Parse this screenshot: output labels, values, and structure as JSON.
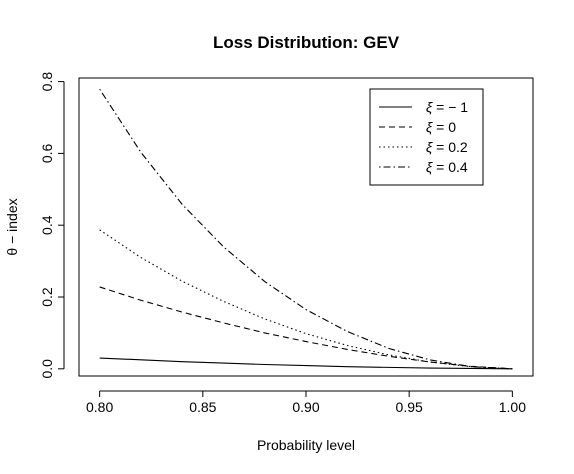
{
  "chart_data": {
    "type": "line",
    "title": "Loss Distribution: GEV",
    "xlabel": "Probability level",
    "ylabel": "θ − index",
    "xlim": [
      0.79,
      1.01
    ],
    "ylim": [
      -0.02,
      0.81
    ],
    "x_ticks": [
      0.8,
      0.85,
      0.9,
      0.95,
      1.0
    ],
    "x_tick_labels": [
      "0.80",
      "0.85",
      "0.90",
      "0.95",
      "1.00"
    ],
    "y_ticks": [
      0.0,
      0.2,
      0.4,
      0.6,
      0.8
    ],
    "y_tick_labels": [
      "0.0",
      "0.2",
      "0.4",
      "0.6",
      "0.8"
    ],
    "grid": false,
    "legend": {
      "placement": "top-right"
    },
    "x": [
      0.8,
      0.82,
      0.84,
      0.86,
      0.88,
      0.9,
      0.92,
      0.94,
      0.96,
      0.98,
      1.0
    ],
    "series": [
      {
        "name": "ξ = −1",
        "legend_symbol": "ξ",
        "legend_value": "= − 1",
        "linestyle": "solid",
        "values": [
          0.03,
          0.025,
          0.02,
          0.016,
          0.012,
          0.009,
          0.006,
          0.004,
          0.002,
          0.001,
          0.0
        ]
      },
      {
        "name": "ξ = 0",
        "legend_symbol": "ξ",
        "legend_value": "= 0",
        "linestyle": "dashed",
        "values": [
          0.228,
          0.191,
          0.158,
          0.128,
          0.1,
          0.076,
          0.054,
          0.035,
          0.019,
          0.007,
          0.0
        ]
      },
      {
        "name": "ξ = 0.2",
        "legend_symbol": "ξ",
        "legend_value": "= 0.2",
        "linestyle": "dotted",
        "values": [
          0.387,
          0.31,
          0.244,
          0.188,
          0.139,
          0.098,
          0.065,
          0.039,
          0.019,
          0.006,
          0.0
        ]
      },
      {
        "name": "ξ = 0.4",
        "legend_symbol": "ξ",
        "legend_value": "= 0.4",
        "linestyle": "dotdash",
        "values": [
          0.779,
          0.603,
          0.458,
          0.34,
          0.243,
          0.165,
          0.104,
          0.057,
          0.025,
          0.006,
          0.0
        ]
      }
    ]
  }
}
